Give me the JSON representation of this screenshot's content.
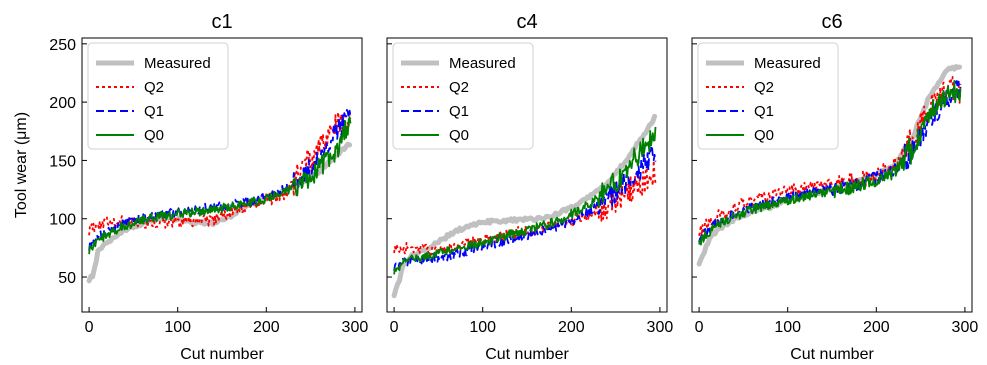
{
  "chart_data": {
    "type": "line",
    "ylabel": "Tool wear (μm)",
    "xlabel": "Cut number",
    "xlim": [
      -8,
      308
    ],
    "ylim": [
      20,
      255
    ],
    "xticks": [
      0,
      100,
      200,
      300
    ],
    "yticks": [
      50,
      100,
      150,
      200,
      250
    ],
    "legend": {
      "placement": "top-left",
      "entries": [
        "Measured",
        "Q2",
        "Q1",
        "Q0"
      ]
    },
    "series_styles": {
      "Measured": {
        "color": "#c0c0c0",
        "dash": "solid"
      },
      "Q2": {
        "color": "#ff0000",
        "dash": "dotted"
      },
      "Q1": {
        "color": "#0000ff",
        "dash": "dashed"
      },
      "Q0": {
        "color": "#008000",
        "dash": "solid"
      }
    },
    "panels": [
      {
        "title": "c1",
        "series": [
          {
            "name": "Measured",
            "x": [
              0,
              5,
              10,
              20,
              40,
              60,
              80,
              100,
              120,
              140,
              160,
              180,
              200,
              220,
              240,
              260,
              280,
              295
            ],
            "y": [
              48,
              52,
              72,
              80,
              90,
              96,
              100,
              100,
              97,
              96,
              102,
              112,
              118,
              124,
              132,
              140,
              155,
              165
            ]
          },
          {
            "name": "Q2",
            "x": [
              0,
              5,
              10,
              20,
              40,
              60,
              80,
              100,
              120,
              140,
              160,
              180,
              200,
              220,
              240,
              260,
              280,
              295
            ],
            "y": [
              90,
              94,
              92,
              97,
              98,
              96,
              96,
              97,
              98,
              99,
              105,
              112,
              116,
              120,
              140,
              162,
              180,
              186
            ]
          },
          {
            "name": "Q1",
            "x": [
              0,
              5,
              10,
              20,
              40,
              60,
              80,
              100,
              120,
              140,
              160,
              180,
              200,
              220,
              240,
              260,
              280,
              295
            ],
            "y": [
              76,
              80,
              84,
              88,
              96,
              100,
              103,
              106,
              108,
              110,
              112,
              114,
              118,
              125,
              135,
              150,
              175,
              190
            ]
          },
          {
            "name": "Q0",
            "x": [
              0,
              5,
              10,
              20,
              40,
              60,
              80,
              100,
              120,
              140,
              160,
              180,
              200,
              220,
              240,
              260,
              280,
              295
            ],
            "y": [
              73,
              76,
              80,
              86,
              94,
              99,
              102,
              104,
              106,
              108,
              110,
              113,
              117,
              122,
              130,
              143,
              160,
              185
            ]
          }
        ]
      },
      {
        "title": "c4",
        "series": [
          {
            "name": "Measured",
            "x": [
              0,
              5,
              10,
              20,
              40,
              60,
              80,
              100,
              120,
              140,
              160,
              180,
              200,
              220,
              240,
              260,
              280,
              295
            ],
            "y": [
              35,
              45,
              60,
              68,
              75,
              85,
              93,
              97,
              98,
              99,
              100,
              103,
              110,
              118,
              130,
              148,
              170,
              188
            ]
          },
          {
            "name": "Q2",
            "x": [
              0,
              5,
              10,
              20,
              30,
              40,
              60,
              80,
              100,
              120,
              140,
              160,
              180,
              200,
              220,
              240,
              260,
              280,
              295
            ],
            "y": [
              74,
              74,
              74,
              75,
              75,
              72,
              74,
              78,
              82,
              85,
              88,
              90,
              94,
              98,
              104,
              112,
              122,
              132,
              140
            ]
          },
          {
            "name": "Q1",
            "x": [
              0,
              5,
              10,
              20,
              40,
              60,
              80,
              100,
              120,
              140,
              160,
              180,
              200,
              220,
              240,
              260,
              280,
              295
            ],
            "y": [
              58,
              60,
              62,
              64,
              66,
              68,
              72,
              76,
              80,
              84,
              88,
              92,
              98,
              106,
              116,
              130,
              145,
              158
            ]
          },
          {
            "name": "Q0",
            "x": [
              0,
              5,
              10,
              20,
              40,
              60,
              80,
              100,
              120,
              140,
              160,
              180,
              200,
              220,
              240,
              260,
              280,
              295
            ],
            "y": [
              55,
              58,
              62,
              65,
              68,
              72,
              76,
              80,
              84,
              88,
              92,
              97,
              104,
              112,
              124,
              140,
              160,
              170
            ]
          }
        ]
      },
      {
        "title": "c6",
        "series": [
          {
            "name": "Measured",
            "x": [
              0,
              5,
              10,
              20,
              40,
              60,
              80,
              100,
              120,
              140,
              160,
              180,
              200,
              220,
              240,
              260,
              280,
              295
            ],
            "y": [
              62,
              70,
              80,
              90,
              100,
              106,
              110,
              116,
              120,
              124,
              128,
              132,
              138,
              146,
              168,
              205,
              228,
              230
            ]
          },
          {
            "name": "Q2",
            "x": [
              0,
              5,
              10,
              20,
              40,
              60,
              80,
              100,
              120,
              140,
              160,
              180,
              200,
              220,
              240,
              260,
              280,
              295
            ],
            "y": [
              88,
              92,
              96,
              102,
              110,
              116,
              120,
              124,
              126,
              128,
              130,
              133,
              137,
              145,
              165,
              195,
              210,
              210
            ]
          },
          {
            "name": "Q1",
            "x": [
              0,
              5,
              10,
              20,
              40,
              60,
              80,
              100,
              120,
              140,
              160,
              180,
              200,
              220,
              240,
              260,
              280,
              295
            ],
            "y": [
              82,
              86,
              90,
              96,
              104,
              110,
              114,
              118,
              121,
              124,
              127,
              130,
              135,
              142,
              158,
              185,
              205,
              210
            ]
          },
          {
            "name": "Q0",
            "x": [
              0,
              5,
              10,
              20,
              40,
              60,
              80,
              100,
              120,
              140,
              160,
              180,
              200,
              220,
              240,
              260,
              280,
              295
            ],
            "y": [
              80,
              84,
              88,
              94,
              102,
              108,
              112,
              116,
              119,
              122,
              125,
              128,
              133,
              140,
              158,
              190,
              208,
              210
            ]
          }
        ]
      }
    ]
  }
}
